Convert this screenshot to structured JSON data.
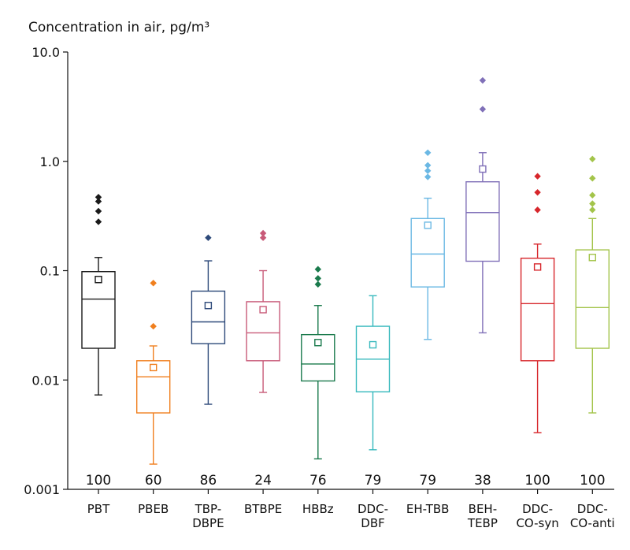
{
  "chart_data": {
    "type": "box",
    "title": "Concentration in air, pg/m³",
    "xlabel": "",
    "ylabel": "",
    "yscale": "log",
    "ylim": [
      0.001,
      10
    ],
    "ytick_labels": [
      "0.001",
      "0.01",
      "0.1",
      "1.0",
      "10.0"
    ],
    "ytick_values": [
      0.001,
      0.01,
      0.1,
      1,
      10
    ],
    "grid": false,
    "legend": "none",
    "series": [
      {
        "label_lines": [
          "PBT"
        ],
        "color": "#1a1a1a",
        "count": "100",
        "whisker_low": 0.0073,
        "q1": 0.0195,
        "median": 0.055,
        "q3": 0.098,
        "whisker_high": 0.132,
        "mean": 0.083,
        "outliers": [
          0.28,
          0.35,
          0.43,
          0.47
        ]
      },
      {
        "label_lines": [
          "PBEB"
        ],
        "color": "#f07f1e",
        "count": "60",
        "whisker_low": 0.0017,
        "q1": 0.005,
        "median": 0.0107,
        "q3": 0.015,
        "whisker_high": 0.0205,
        "mean": 0.013,
        "outliers": [
          0.031,
          0.077
        ]
      },
      {
        "label_lines": [
          "TBP-",
          "DBPE"
        ],
        "color": "#2e4a7a",
        "count": "86",
        "whisker_low": 0.006,
        "q1": 0.0215,
        "median": 0.034,
        "q3": 0.065,
        "whisker_high": 0.123,
        "mean": 0.048,
        "outliers": [
          0.2
        ]
      },
      {
        "label_lines": [
          "BTBPE"
        ],
        "color": "#c85a78",
        "count": "24",
        "whisker_low": 0.0077,
        "q1": 0.015,
        "median": 0.027,
        "q3": 0.052,
        "whisker_high": 0.1,
        "mean": 0.044,
        "outliers": [
          0.2,
          0.22
        ]
      },
      {
        "label_lines": [
          "HBBz"
        ],
        "color": "#1a7a4c",
        "count": "76",
        "whisker_low": 0.0019,
        "q1": 0.0098,
        "median": 0.014,
        "q3": 0.026,
        "whisker_high": 0.048,
        "mean": 0.022,
        "outliers": [
          0.075,
          0.085,
          0.103
        ]
      },
      {
        "label_lines": [
          "DDC-",
          "DBF"
        ],
        "color": "#37b9bd",
        "count": "79",
        "whisker_low": 0.0023,
        "q1": 0.0078,
        "median": 0.0155,
        "q3": 0.031,
        "whisker_high": 0.059,
        "mean": 0.021,
        "outliers": []
      },
      {
        "label_lines": [
          "EH-TBB"
        ],
        "color": "#6bb8e4",
        "count": "79",
        "whisker_low": 0.0235,
        "q1": 0.071,
        "median": 0.142,
        "q3": 0.3,
        "whisker_high": 0.46,
        "mean": 0.26,
        "outliers": [
          0.72,
          0.82,
          0.92,
          1.2
        ]
      },
      {
        "label_lines": [
          "BEH-",
          "TEBP"
        ],
        "color": "#8070b8",
        "count": "38",
        "whisker_low": 0.027,
        "q1": 0.122,
        "median": 0.34,
        "q3": 0.65,
        "whisker_high": 1.2,
        "mean": 0.85,
        "outliers": [
          3.0,
          5.5
        ]
      },
      {
        "label_lines": [
          "DDC-",
          "CO-syn"
        ],
        "color": "#d7262b",
        "count": "100",
        "whisker_low": 0.0033,
        "q1": 0.015,
        "median": 0.05,
        "q3": 0.13,
        "whisker_high": 0.175,
        "mean": 0.108,
        "outliers": [
          0.36,
          0.52,
          0.73
        ]
      },
      {
        "label_lines": [
          "DDC-",
          "CO-anti"
        ],
        "color": "#a3c44a",
        "count": "100",
        "whisker_low": 0.005,
        "q1": 0.0195,
        "median": 0.046,
        "q3": 0.155,
        "whisker_high": 0.3,
        "mean": 0.132,
        "outliers": [
          0.36,
          0.41,
          0.49,
          0.7,
          1.05
        ]
      }
    ]
  }
}
